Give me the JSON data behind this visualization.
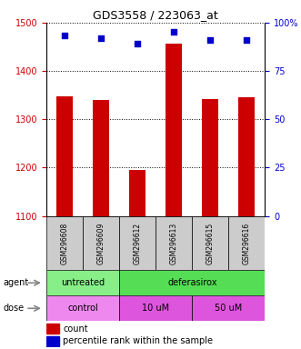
{
  "title": "GDS3558 / 223063_at",
  "samples": [
    "GSM296608",
    "GSM296609",
    "GSM296612",
    "GSM296613",
    "GSM296615",
    "GSM296616"
  ],
  "counts": [
    1348,
    1340,
    1196,
    1456,
    1342,
    1345
  ],
  "percentiles": [
    93,
    92,
    89,
    95,
    91,
    91
  ],
  "ylim_left": [
    1100,
    1500
  ],
  "ylim_right": [
    0,
    100
  ],
  "yticks_left": [
    1100,
    1200,
    1300,
    1400,
    1500
  ],
  "yticks_right": [
    0,
    25,
    50,
    75,
    100
  ],
  "ytick_right_labels": [
    "0",
    "25",
    "50",
    "75",
    "100%"
  ],
  "bar_color": "#cc0000",
  "dot_color": "#0000cc",
  "bar_width": 0.45,
  "agent_labels": [
    {
      "text": "untreated",
      "cols": [
        0,
        1
      ],
      "color": "#88ee88"
    },
    {
      "text": "deferasirox",
      "cols": [
        2,
        3,
        4,
        5
      ],
      "color": "#55dd55"
    }
  ],
  "dose_labels": [
    {
      "text": "control",
      "cols": [
        0,
        1
      ],
      "color": "#ee88ee"
    },
    {
      "text": "10 uM",
      "cols": [
        2,
        3
      ],
      "color": "#dd55dd"
    },
    {
      "text": "50 uM",
      "cols": [
        4,
        5
      ],
      "color": "#dd55dd"
    }
  ],
  "legend_count_color": "#cc0000",
  "legend_pct_color": "#0000cc",
  "sample_box_color": "#cccccc",
  "left_label_color": "#cc0000",
  "right_label_color": "#0000cc",
  "bg_color": "#ffffff"
}
